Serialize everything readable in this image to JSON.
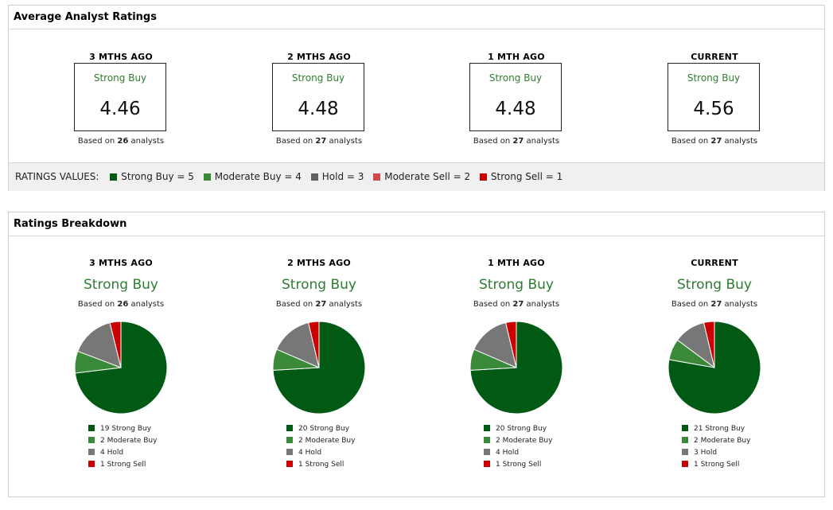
{
  "average_panel": {
    "title": "Average Analyst Ratings",
    "columns": [
      {
        "period": "3 MTHS AGO",
        "rating": "Strong Buy",
        "score": "4.46",
        "based_prefix": "Based on",
        "count": "26",
        "based_suffix": "analysts"
      },
      {
        "period": "2 MTHS AGO",
        "rating": "Strong Buy",
        "score": "4.48",
        "based_prefix": "Based on",
        "count": "27",
        "based_suffix": "analysts"
      },
      {
        "period": "1 MTH AGO",
        "rating": "Strong Buy",
        "score": "4.48",
        "based_prefix": "Based on",
        "count": "27",
        "based_suffix": "analysts"
      },
      {
        "period": "CURRENT",
        "rating": "Strong Buy",
        "score": "4.56",
        "based_prefix": "Based on",
        "count": "27",
        "based_suffix": "analysts"
      }
    ],
    "legend": {
      "title": "RATINGS VALUES:",
      "items": [
        {
          "label": "Strong Buy = 5",
          "color": "#005a14"
        },
        {
          "label": "Moderate Buy = 4",
          "color": "#3a8a3a"
        },
        {
          "label": "Hold = 3",
          "color": "#616161"
        },
        {
          "label": "Moderate Sell = 2",
          "color": "#d04a4a"
        },
        {
          "label": "Strong Sell = 1",
          "color": "#cc0000"
        }
      ]
    }
  },
  "breakdown_panel": {
    "title": "Ratings Breakdown",
    "columns": [
      {
        "period": "3 MTHS AGO",
        "rating": "Strong Buy",
        "based_prefix": "Based on",
        "count": "26",
        "based_suffix": "analysts",
        "legend": [
          {
            "label": "19 Strong Buy",
            "color": "#005a14"
          },
          {
            "label": "2 Moderate Buy",
            "color": "#3a8a3a"
          },
          {
            "label": "4 Hold",
            "color": "#777777"
          },
          {
            "label": "1 Strong Sell",
            "color": "#cc0000"
          }
        ]
      },
      {
        "period": "2 MTHS AGO",
        "rating": "Strong Buy",
        "based_prefix": "Based on",
        "count": "27",
        "based_suffix": "analysts",
        "legend": [
          {
            "label": "20 Strong Buy",
            "color": "#005a14"
          },
          {
            "label": "2 Moderate Buy",
            "color": "#3a8a3a"
          },
          {
            "label": "4 Hold",
            "color": "#777777"
          },
          {
            "label": "1 Strong Sell",
            "color": "#cc0000"
          }
        ]
      },
      {
        "period": "1 MTH AGO",
        "rating": "Strong Buy",
        "based_prefix": "Based on",
        "count": "27",
        "based_suffix": "analysts",
        "legend": [
          {
            "label": "20 Strong Buy",
            "color": "#005a14"
          },
          {
            "label": "2 Moderate Buy",
            "color": "#3a8a3a"
          },
          {
            "label": "4 Hold",
            "color": "#777777"
          },
          {
            "label": "1 Strong Sell",
            "color": "#cc0000"
          }
        ]
      },
      {
        "period": "CURRENT",
        "rating": "Strong Buy",
        "based_prefix": "Based on",
        "count": "27",
        "based_suffix": "analysts",
        "legend": [
          {
            "label": "21 Strong Buy",
            "color": "#005a14"
          },
          {
            "label": "2 Moderate Buy",
            "color": "#3a8a3a"
          },
          {
            "label": "3 Hold",
            "color": "#777777"
          },
          {
            "label": "1 Strong Sell",
            "color": "#cc0000"
          }
        ]
      }
    ]
  },
  "chart_data": [
    {
      "type": "pie",
      "categories": [
        "Strong Buy",
        "Moderate Buy",
        "Hold",
        "Strong Sell"
      ],
      "values": [
        19,
        2,
        4,
        1
      ],
      "colors": [
        "#005a14",
        "#3a8a3a",
        "#777777",
        "#cc0000"
      ]
    },
    {
      "type": "pie",
      "categories": [
        "Strong Buy",
        "Moderate Buy",
        "Hold",
        "Strong Sell"
      ],
      "values": [
        20,
        2,
        4,
        1
      ],
      "colors": [
        "#005a14",
        "#3a8a3a",
        "#777777",
        "#cc0000"
      ]
    },
    {
      "type": "pie",
      "categories": [
        "Strong Buy",
        "Moderate Buy",
        "Hold",
        "Strong Sell"
      ],
      "values": [
        20,
        2,
        4,
        1
      ],
      "colors": [
        "#005a14",
        "#3a8a3a",
        "#777777",
        "#cc0000"
      ]
    },
    {
      "type": "pie",
      "categories": [
        "Strong Buy",
        "Moderate Buy",
        "Hold",
        "Strong Sell"
      ],
      "values": [
        21,
        2,
        3,
        1
      ],
      "colors": [
        "#005a14",
        "#3a8a3a",
        "#777777",
        "#cc0000"
      ]
    }
  ]
}
